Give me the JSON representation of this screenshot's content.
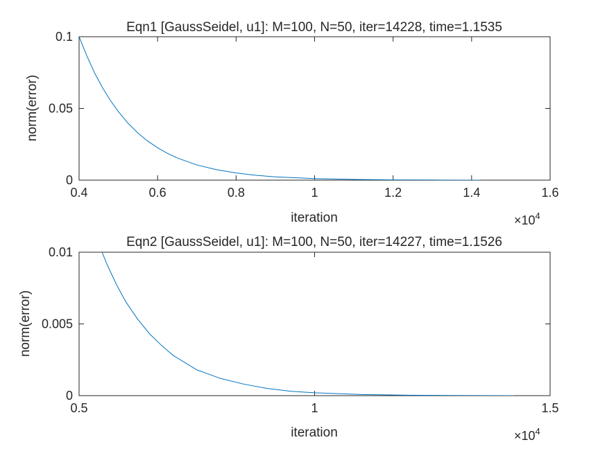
{
  "colors": {
    "line": "#0072BD",
    "axes": "#262626",
    "background": "#ffffff"
  },
  "chart_data": [
    {
      "type": "line",
      "title": "Eqn1 [GaussSeidel, u1]: M=100, N=50, iter=14228, time=1.1535",
      "xlabel": "iteration",
      "ylabel": "norm(error)",
      "xlim": [
        4000,
        16000
      ],
      "ylim": [
        0,
        0.1
      ],
      "x_scale_label": "×10",
      "x_scale_exponent": "4",
      "xticks": [
        4000,
        6000,
        8000,
        10000,
        12000,
        14000,
        16000
      ],
      "xtick_labels": [
        "0.4",
        "0.6",
        "0.8",
        "1",
        "1.2",
        "1.4",
        "1.6"
      ],
      "yticks": [
        0,
        0.05,
        0.1
      ],
      "ytick_labels": [
        "0",
        "0.05",
        "0.1"
      ],
      "grid": false,
      "series": [
        {
          "x": [
            4000,
            4200,
            4400,
            4600,
            4800,
            5000,
            5250,
            5500,
            5750,
            6000,
            6250,
            6500,
            7000,
            7500,
            8000,
            8500,
            9000,
            10000,
            11000,
            12000,
            13000,
            14228
          ],
          "y": [
            0.1,
            0.0865,
            0.0745,
            0.0643,
            0.0555,
            0.0478,
            0.0396,
            0.0328,
            0.0272,
            0.0226,
            0.0187,
            0.0155,
            0.0106,
            0.0073,
            0.005,
            0.0034,
            0.0023,
            0.0011,
            0.0005,
            0.0002,
            0.0001,
            3e-05
          ]
        }
      ]
    },
    {
      "type": "line",
      "title": "Eqn2 [GaussSeidel, u1]: M=100, N=50, iter=14227, time=1.1526",
      "xlabel": "iteration",
      "ylabel": "norm(error)",
      "xlim": [
        5000,
        15000
      ],
      "ylim": [
        0,
        0.01
      ],
      "x_scale_label": "×10",
      "x_scale_exponent": "4",
      "xticks": [
        5000,
        10000,
        15000
      ],
      "xtick_labels": [
        "0.5",
        "1",
        "1.5"
      ],
      "yticks": [
        0,
        0.005,
        0.01
      ],
      "ytick_labels": [
        "0",
        "0.005",
        "0.01"
      ],
      "grid": false,
      "series": [
        {
          "x": [
            5400,
            5600,
            5800,
            6000,
            6250,
            6500,
            6750,
            7000,
            7250,
            7500,
            7750,
            8000,
            8500,
            9000,
            9500,
            10000,
            11000,
            12000,
            13000,
            14227
          ],
          "y": [
            0.0107,
            0.0091,
            0.0077,
            0.0065,
            0.0053,
            0.0043,
            0.0035,
            0.0028,
            0.0023,
            0.0018,
            0.0015,
            0.0012,
            0.0008,
            0.0005,
            0.0003,
            0.0002,
            8e-05,
            3e-05,
            1e-05,
            3e-06
          ]
        }
      ]
    }
  ]
}
